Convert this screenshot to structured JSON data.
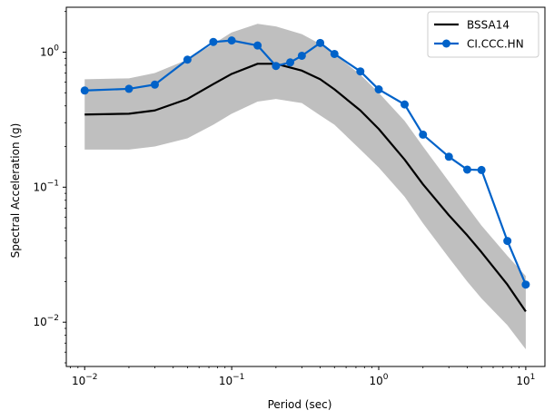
{
  "chart_data": {
    "type": "line",
    "xscale": "log",
    "yscale": "log",
    "xlabel": "Period (sec)",
    "ylabel": "Spectral Acceleration (g)",
    "xlim": [
      0.0075,
      13.5
    ],
    "ylim": [
      0.0047,
      2.15
    ],
    "x_ticks": [
      {
        "value": 0.01,
        "base": "10",
        "exp": "−2"
      },
      {
        "value": 0.1,
        "base": "10",
        "exp": "−1"
      },
      {
        "value": 1,
        "base": "10",
        "exp": "0"
      },
      {
        "value": 10,
        "base": "10",
        "exp": "1"
      }
    ],
    "y_ticks": [
      {
        "value": 0.01,
        "base": "10",
        "exp": "−2"
      },
      {
        "value": 0.1,
        "base": "10",
        "exp": "−1"
      },
      {
        "value": 1,
        "base": "10",
        "exp": "0"
      }
    ],
    "legend_position": "top-right",
    "band": {
      "color": "#bfbfbf",
      "x": [
        0.01,
        0.02,
        0.03,
        0.05,
        0.075,
        0.1,
        0.15,
        0.2,
        0.3,
        0.4,
        0.5,
        0.75,
        1.0,
        1.5,
        2.0,
        3.0,
        4.0,
        5.0,
        7.5,
        10.0
      ],
      "upper": [
        0.63,
        0.64,
        0.7,
        0.88,
        1.15,
        1.4,
        1.62,
        1.55,
        1.36,
        1.15,
        0.97,
        0.68,
        0.5,
        0.31,
        0.2,
        0.11,
        0.072,
        0.052,
        0.031,
        0.022
      ],
      "lower": [
        0.19,
        0.19,
        0.2,
        0.23,
        0.29,
        0.35,
        0.43,
        0.45,
        0.42,
        0.34,
        0.29,
        0.19,
        0.14,
        0.085,
        0.054,
        0.03,
        0.02,
        0.015,
        0.0095,
        0.0063
      ]
    },
    "series": [
      {
        "name": "BSSA14",
        "color": "#000000",
        "marker": "none",
        "x": [
          0.01,
          0.02,
          0.03,
          0.05,
          0.075,
          0.1,
          0.15,
          0.2,
          0.3,
          0.4,
          0.5,
          0.75,
          1.0,
          1.5,
          2.0,
          3.0,
          4.0,
          5.0,
          7.5,
          10.0
        ],
        "y": [
          0.345,
          0.35,
          0.37,
          0.45,
          0.58,
          0.69,
          0.82,
          0.82,
          0.73,
          0.63,
          0.53,
          0.37,
          0.27,
          0.16,
          0.105,
          0.062,
          0.044,
          0.033,
          0.019,
          0.012
        ]
      },
      {
        "name": "CI.CCC.HN",
        "color": "#0062c9",
        "marker": "circle",
        "x": [
          0.01,
          0.02,
          0.03,
          0.05,
          0.075,
          0.1,
          0.15,
          0.2,
          0.25,
          0.3,
          0.4,
          0.5,
          0.75,
          1.0,
          1.5,
          2.0,
          3.0,
          4.0,
          5.0,
          7.5,
          10.0
        ],
        "y": [
          0.52,
          0.535,
          0.575,
          0.88,
          1.19,
          1.22,
          1.12,
          0.79,
          0.84,
          0.94,
          1.17,
          0.97,
          0.72,
          0.53,
          0.41,
          0.245,
          0.168,
          0.135,
          0.134,
          0.04,
          0.019
        ]
      }
    ]
  }
}
